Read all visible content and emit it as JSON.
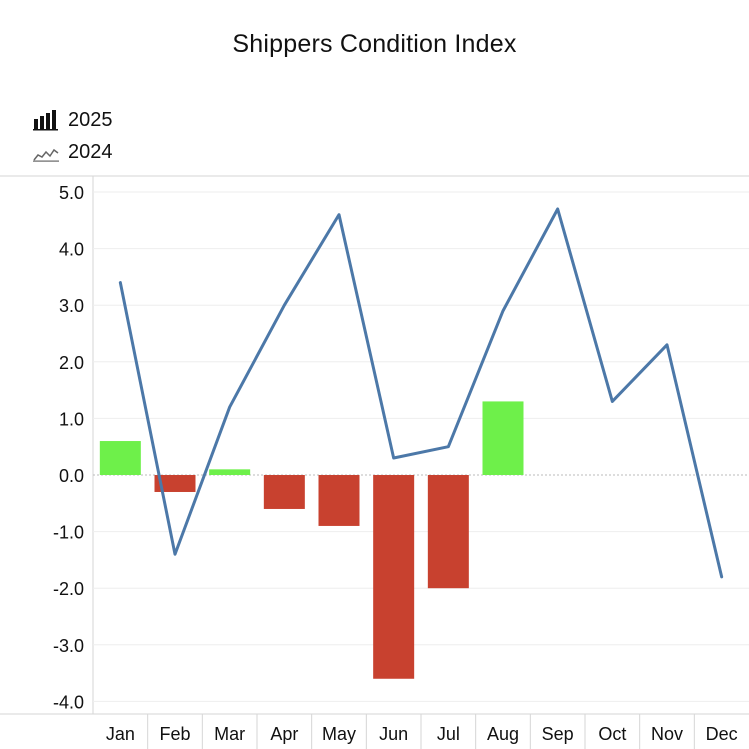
{
  "title": "Shippers Condition Index",
  "legend": [
    {
      "label": "2025",
      "icon": "bar-chart-icon"
    },
    {
      "label": "2024",
      "icon": "line-chart-icon"
    }
  ],
  "colors": {
    "positive_bar": "#6EF04A",
    "negative_bar": "#C8412F",
    "line_2024": "#4C78A8",
    "grid": "#eeeeee",
    "zero_line": "#bbbbbb",
    "axis_border": "#d6d6d6"
  },
  "chart_data": {
    "type": "bar",
    "title": "Shippers Condition Index",
    "xlabel": "",
    "ylabel": "",
    "categories": [
      "Jan",
      "Feb",
      "Mar",
      "Apr",
      "May",
      "Jun",
      "Jul",
      "Aug",
      "Sep",
      "Oct",
      "Nov",
      "Dec"
    ],
    "y_ticks": [
      "5.0",
      "4.0",
      "3.0",
      "2.0",
      "1.0",
      "0.0",
      "-1.0",
      "-2.0",
      "-3.0",
      "-4.0"
    ],
    "ylim": [
      -4.2,
      5.3
    ],
    "grid": true,
    "legend_position": "top-left",
    "series": [
      {
        "name": "2025",
        "type": "bar",
        "values": [
          0.6,
          -0.3,
          0.1,
          -0.6,
          -0.9,
          -3.6,
          -2.0,
          1.3,
          null,
          null,
          null,
          null
        ]
      },
      {
        "name": "2024",
        "type": "line",
        "values": [
          3.4,
          -1.4,
          1.2,
          3.0,
          4.6,
          0.3,
          0.5,
          2.9,
          4.7,
          1.3,
          2.3,
          -1.8
        ]
      }
    ]
  }
}
